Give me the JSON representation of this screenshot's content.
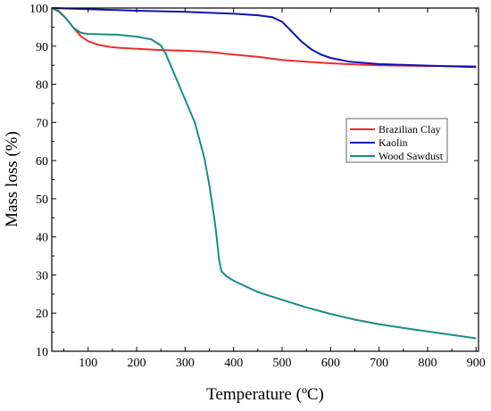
{
  "chart_data": {
    "type": "line",
    "title": "",
    "xlabel": "Temperature (ºC)",
    "ylabel": "Mass loss (%)",
    "xlim": [
      25,
      905
    ],
    "ylim": [
      10,
      100
    ],
    "x_ticks": [
      100,
      200,
      300,
      400,
      500,
      600,
      700,
      800,
      900
    ],
    "y_ticks": [
      10,
      20,
      30,
      40,
      50,
      60,
      70,
      80,
      90,
      100
    ],
    "grid": false,
    "legend_position": "right",
    "series": [
      {
        "name": "Brazilian Clay",
        "color": "#ee2b2b",
        "points": [
          [
            25,
            100
          ],
          [
            40,
            99.2
          ],
          [
            55,
            97.2
          ],
          [
            70,
            94.8
          ],
          [
            85,
            92.6
          ],
          [
            100,
            91.3
          ],
          [
            120,
            90.4
          ],
          [
            140,
            89.9
          ],
          [
            160,
            89.6
          ],
          [
            200,
            89.3
          ],
          [
            250,
            89
          ],
          [
            300,
            88.8
          ],
          [
            350,
            88.5
          ],
          [
            400,
            87.8
          ],
          [
            450,
            87.2
          ],
          [
            500,
            86.4
          ],
          [
            550,
            85.9
          ],
          [
            600,
            85.5
          ],
          [
            650,
            85.2
          ],
          [
            700,
            85
          ],
          [
            750,
            84.9
          ],
          [
            800,
            84.8
          ],
          [
            850,
            84.75
          ],
          [
            900,
            84.7
          ]
        ]
      },
      {
        "name": "Kaolin",
        "color": "#1010bb",
        "points": [
          [
            25,
            100
          ],
          [
            100,
            99.7
          ],
          [
            200,
            99.3
          ],
          [
            300,
            99
          ],
          [
            400,
            98.5
          ],
          [
            450,
            98.1
          ],
          [
            480,
            97.6
          ],
          [
            500,
            96.4
          ],
          [
            520,
            93.8
          ],
          [
            540,
            91.2
          ],
          [
            560,
            89.2
          ],
          [
            580,
            87.8
          ],
          [
            600,
            86.9
          ],
          [
            640,
            85.9
          ],
          [
            700,
            85.3
          ],
          [
            750,
            85.1
          ],
          [
            800,
            84.9
          ],
          [
            850,
            84.7
          ],
          [
            900,
            84.5
          ]
        ]
      },
      {
        "name": "Wood Sawdust",
        "color": "#1a8c80",
        "points": [
          [
            25,
            100
          ],
          [
            40,
            99
          ],
          [
            55,
            97.2
          ],
          [
            70,
            94.8
          ],
          [
            85,
            93.5
          ],
          [
            100,
            93.2
          ],
          [
            130,
            93.1
          ],
          [
            160,
            93
          ],
          [
            200,
            92.5
          ],
          [
            230,
            91.8
          ],
          [
            250,
            90.2
          ],
          [
            260,
            88
          ],
          [
            270,
            85
          ],
          [
            280,
            82
          ],
          [
            300,
            76
          ],
          [
            320,
            70
          ],
          [
            340,
            60.5
          ],
          [
            350,
            53.5
          ],
          [
            360,
            45
          ],
          [
            365,
            40
          ],
          [
            370,
            34
          ],
          [
            375,
            31
          ],
          [
            385,
            29.7
          ],
          [
            400,
            28.5
          ],
          [
            450,
            25.5
          ],
          [
            500,
            23.5
          ],
          [
            550,
            21.5
          ],
          [
            600,
            19.8
          ],
          [
            650,
            18.3
          ],
          [
            700,
            17.1
          ],
          [
            750,
            16.1
          ],
          [
            800,
            15.2
          ],
          [
            850,
            14.3
          ],
          [
            900,
            13.4
          ]
        ]
      }
    ]
  }
}
